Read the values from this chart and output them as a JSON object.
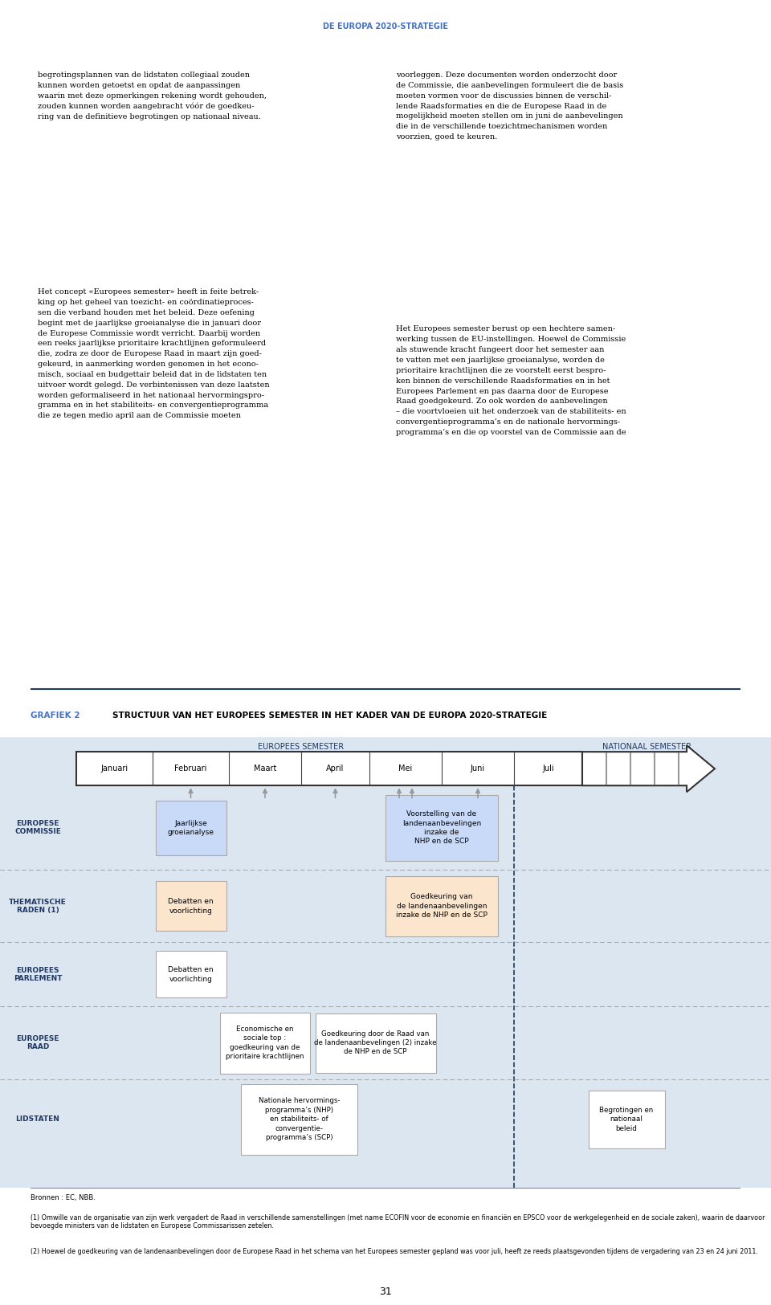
{
  "title_header": "DE EUROPA 2020-STRATEGIE",
  "header_color": "#4472C4",
  "grafiek_label": "GRAFIEK 2",
  "grafiek_title": "STRUCTUUR VAN HET EUROPEES SEMESTER IN HET KADER VAN DE EUROPA 2020-STRATEGIE",
  "diagram_bg": "#dce6f1",
  "months": [
    "Januari",
    "Februari",
    "Maart",
    "April",
    "Mei",
    "Juni",
    "Juli"
  ],
  "row_labels": [
    "EUROPESE\nCOMMISSIE",
    "THEMATISCHE\nRADEN (1)",
    "EUROPEES\nPARLEMENT",
    "EUROPESE\nRAAD",
    "LIDSTATEN"
  ],
  "footnote_sources": "Bronnen : EC, NBB.",
  "footnote_1": "(1) Omwille van de organisatie van zijn werk vergadert de Raad in verschillende samenstellingen (met name ECOFIN voor de economie en financiën en EPSCO voor de werkgelegenheid en de sociale zaken), waarin de daarvoor bevoegde ministers van de lidstaten en Europese Commissarissen zetelen.",
  "footnote_2": "(2) Hoewel de goedkeuring van de landenaanbevelingen door de Europese Raad in het schema van het Europees semester gepland was voor juli, heeft ze reeds plaatsgevonden tijdens de vergadering van 23 en 24 juni 2011.",
  "page_number": "31",
  "blue_box_color": "#c9daf8",
  "orange_box_color": "#fce5cd",
  "white_box_color": "#ffffff",
  "dark_blue": "#1f3864"
}
